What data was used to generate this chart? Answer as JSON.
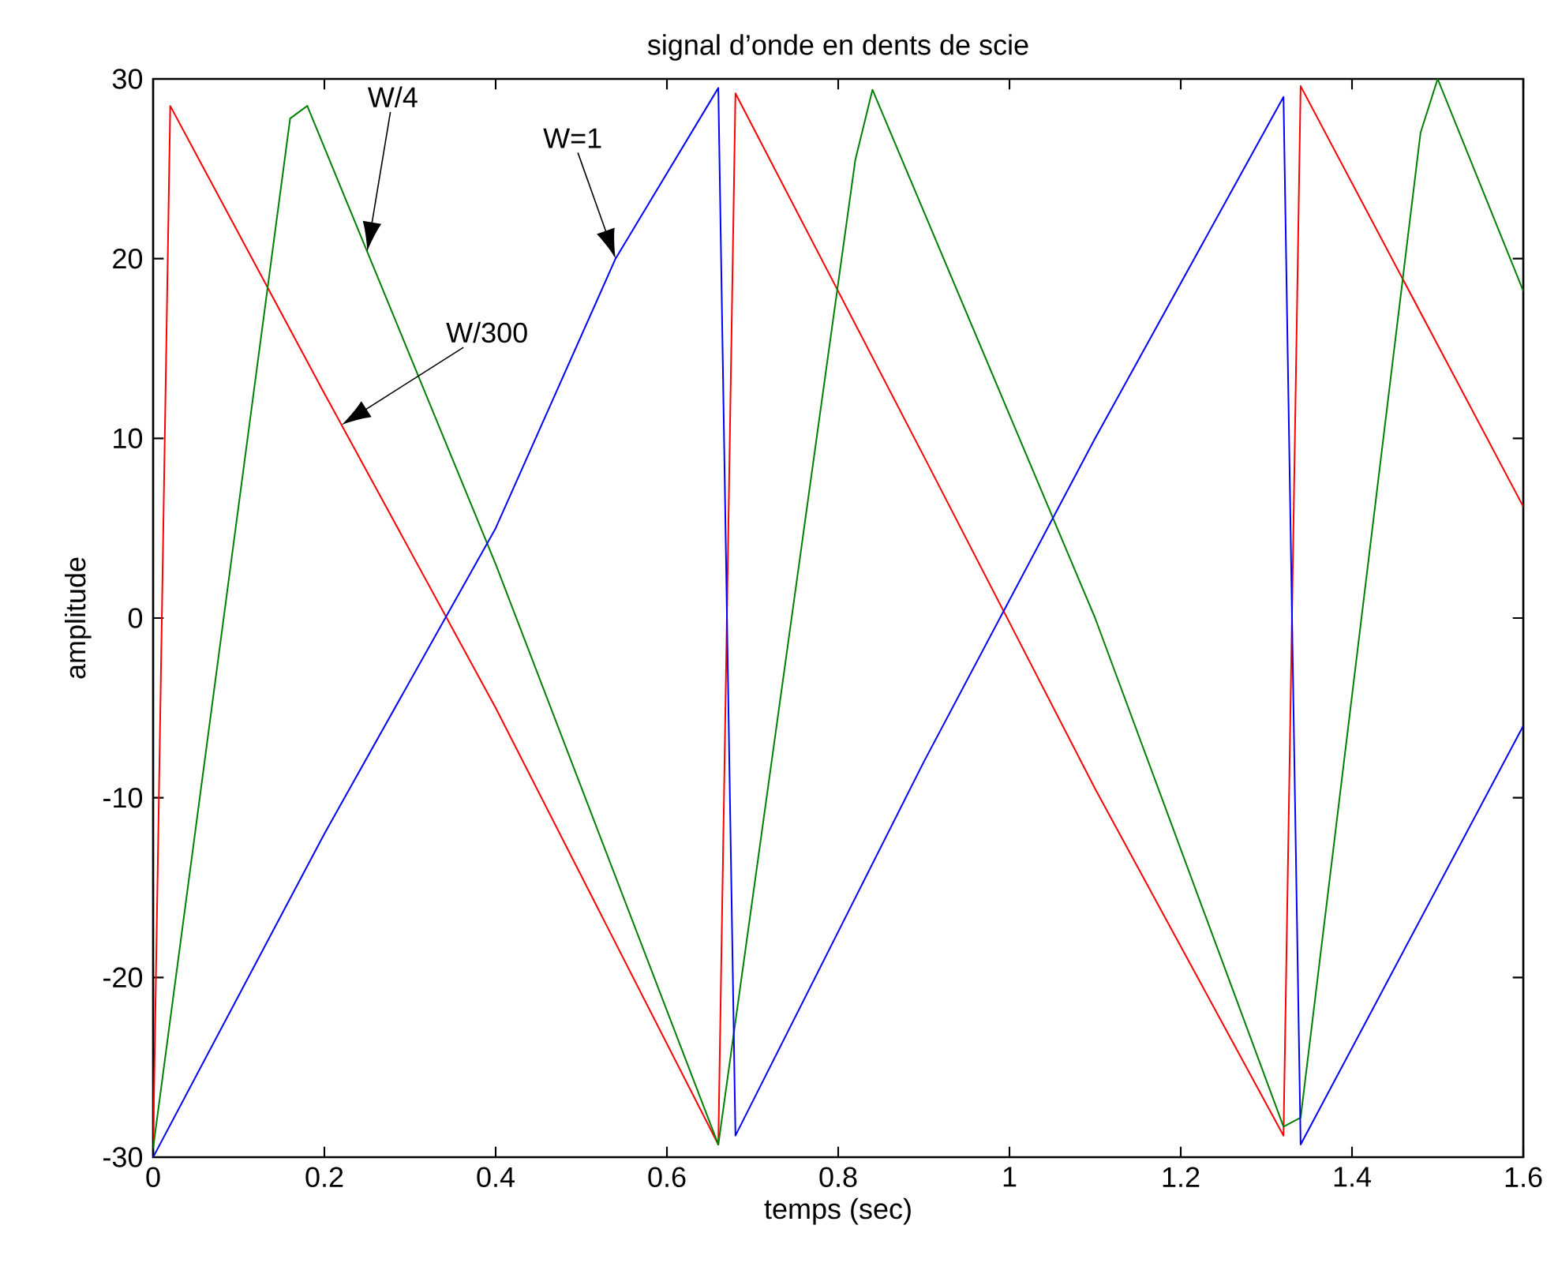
{
  "chart_data": {
    "type": "line",
    "title": "signal d’onde en dents de scie",
    "xlabel": "temps (sec)",
    "ylabel": "amplitude",
    "xlim": [
      0,
      1.6
    ],
    "ylim": [
      -30,
      30
    ],
    "xticks": [
      0,
      0.2,
      0.4,
      0.6,
      0.8,
      1,
      1.2,
      1.4,
      1.6
    ],
    "yticks": [
      -30,
      -20,
      -10,
      0,
      10,
      20,
      30
    ],
    "grid": false,
    "marker": "none",
    "line_style": "solid",
    "series": [
      {
        "color": "#ff0000",
        "x": [
          0,
          0.02,
          0.2,
          0.4,
          0.66,
          0.68,
          0.9,
          1.1,
          1.32,
          1.34,
          1.6
        ],
        "values": [
          -29.5,
          28.5,
          12.5,
          -5,
          -29.3,
          29.2,
          9,
          -9.5,
          -28.8,
          29.6,
          6.2
        ]
      },
      {
        "color": "#008000",
        "x": [
          0,
          0.16,
          0.18,
          0.4,
          0.66,
          0.82,
          0.84,
          1.1,
          1.32,
          1.34,
          1.48,
          1.5,
          1.6
        ],
        "values": [
          -29.5,
          27.8,
          28.5,
          3,
          -29.3,
          25.5,
          29.4,
          0,
          -28.3,
          -27.8,
          27,
          30,
          18.2
        ]
      },
      {
        "color": "#0000ff",
        "x": [
          0,
          0.2,
          0.4,
          0.54,
          0.66,
          0.68,
          0.9,
          1.1,
          1.32,
          1.34,
          1.6
        ],
        "values": [
          -30,
          -12,
          5,
          20,
          29.5,
          -28.8,
          -8,
          10,
          29,
          -29.3,
          -6
        ]
      }
    ],
    "annotations": [
      "W/4",
      "W=1",
      "W/300"
    ]
  }
}
